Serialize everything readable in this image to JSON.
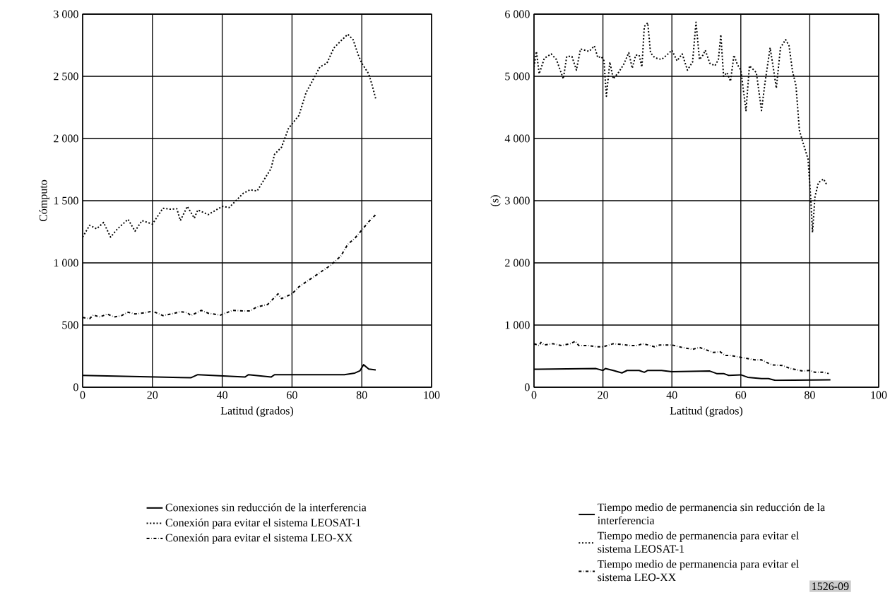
{
  "chart_data": [
    {
      "type": "line",
      "xlabel": "Latitud (grados)",
      "ylabel": "Cómputo",
      "xlim": [
        0,
        100
      ],
      "xticks": [
        0,
        20,
        40,
        60,
        80,
        100
      ],
      "ylim": [
        0,
        3000
      ],
      "yticks": [
        0,
        500,
        {
          "value": 1000,
          "label": "1 000"
        },
        {
          "value": 1500,
          "label": "1 500"
        },
        {
          "value": 2000,
          "label": "2 000"
        },
        {
          "value": 2500,
          "label": "2 500"
        },
        {
          "value": 3000,
          "label": "3 000"
        }
      ],
      "grid": true,
      "legend": "bottom",
      "marker": "none",
      "series": [
        {
          "name": "Conexiones sin reducción de la interferencia",
          "color": "#000000",
          "line_style": "solid",
          "x": [
            0,
            31,
            33,
            46.5,
            47.5,
            54,
            55,
            75,
            78,
            79.5,
            80.5,
            82,
            84
          ],
          "values": [
            95,
            76,
            101,
            82,
            101,
            82,
            101,
            101,
            114,
            133,
            181,
            146,
            139
          ]
        },
        {
          "name": "Conexión para evitar el sistema LEOSAT-1",
          "color": "#000000",
          "line_style": "dotted",
          "x": [
            0,
            2,
            4,
            6,
            8,
            10,
            13,
            15,
            17,
            20,
            23,
            25,
            27,
            28,
            30,
            32,
            33,
            36,
            40,
            42,
            46,
            48,
            50,
            54,
            55,
            57,
            59,
            62,
            64,
            66,
            68,
            70,
            72,
            74,
            76,
            77.5,
            79,
            80,
            82,
            83,
            84
          ],
          "values": [
            1207,
            1302,
            1274,
            1325,
            1207,
            1274,
            1350,
            1255,
            1340,
            1312,
            1439,
            1432,
            1435,
            1340,
            1454,
            1359,
            1426,
            1388,
            1454,
            1445,
            1559,
            1588,
            1578,
            1759,
            1873,
            1930,
            2082,
            2186,
            2367,
            2471,
            2576,
            2605,
            2728,
            2785,
            2838,
            2795,
            2671,
            2605,
            2519,
            2424,
            2319
          ]
        },
        {
          "name": "Conexión para evitar el sistema LEO-XX",
          "color": "#000000",
          "line_style": "dashdot",
          "x": [
            0,
            2,
            3,
            5,
            7,
            9,
            11,
            13,
            15,
            18,
            20,
            23,
            26,
            28,
            30,
            31,
            34,
            36,
            39.5,
            43,
            46,
            48,
            50,
            53,
            56,
            57,
            60,
            62,
            65,
            68,
            71,
            74,
            76,
            78,
            80,
            82,
            84
          ],
          "values": [
            561,
            551,
            580,
            565,
            589,
            565,
            574,
            603,
            589,
            599,
            612,
            576,
            593,
            608,
            599,
            576,
            618,
            595,
            580,
            618,
            614,
            614,
            646,
            665,
            751,
            713,
            751,
            808,
            865,
            922,
            979,
            1055,
            1150,
            1198,
            1264,
            1331,
            1388
          ]
        }
      ]
    },
    {
      "type": "line",
      "xlabel": "Latitud (grados)",
      "ylabel": "(s)",
      "xlim": [
        0,
        100
      ],
      "xticks": [
        0,
        20,
        40,
        60,
        80,
        100
      ],
      "ylim": [
        0,
        6000
      ],
      "yticks": [
        0,
        {
          "value": 1000,
          "label": "1 000"
        },
        {
          "value": 2000,
          "label": "2 000"
        },
        {
          "value": 3000,
          "label": "3 000"
        },
        {
          "value": 4000,
          "label": "4 000"
        },
        {
          "value": 5000,
          "label": "5 000"
        },
        {
          "value": 6000,
          "label": "6 000"
        }
      ],
      "grid": true,
      "legend": "bottom",
      "marker": "none",
      "annotations": [
        "1526-09"
      ],
      "series": [
        {
          "name": "Tiempo medio de permanencia sin reducción de la interferencia",
          "color": "#000000",
          "line_style": "solid",
          "x": [
            0,
            18,
            20,
            20.7,
            23,
            25.5,
            27,
            29,
            30.5,
            32,
            33,
            37,
            40,
            51,
            53,
            55,
            56.5,
            60,
            62,
            66,
            68,
            70,
            86
          ],
          "values": [
            290,
            300,
            270,
            300,
            270,
            230,
            270,
            270,
            270,
            240,
            270,
            270,
            250,
            260,
            220,
            220,
            190,
            200,
            160,
            140,
            140,
            110,
            120
          ]
        },
        {
          "name": "Tiempo medio de permanencia para evitar el sistema LEOSAT-1",
          "color": "#000000",
          "line_style": "dotted",
          "x": [
            0,
            0.7,
            1.5,
            3,
            5,
            6.5,
            8.5,
            9.5,
            11,
            12.3,
            13.5,
            16,
            17.5,
            18.5,
            19.5,
            20.3,
            21,
            22,
            23,
            24.5,
            26,
            27.5,
            28.5,
            29.5,
            30.5,
            31.3,
            32,
            33,
            33.8,
            35,
            37,
            38.5,
            40,
            41.5,
            43,
            44.5,
            46,
            47,
            48,
            49,
            49.7,
            51,
            52.5,
            53.5,
            54.2,
            55,
            56,
            57,
            58,
            59,
            60,
            61.5,
            62.5,
            64.5,
            66,
            67,
            68.5,
            69.5,
            70.3,
            71.5,
            73,
            74,
            75,
            76,
            77,
            78,
            79.5,
            80.3,
            80.8,
            81.5,
            82.5,
            84,
            85
          ],
          "values": [
            5150,
            5400,
            5040,
            5290,
            5360,
            5270,
            4960,
            5320,
            5320,
            5100,
            5440,
            5400,
            5490,
            5300,
            5320,
            5250,
            4680,
            5230,
            4960,
            5060,
            5190,
            5380,
            5130,
            5340,
            5340,
            5150,
            5800,
            5860,
            5380,
            5300,
            5270,
            5340,
            5420,
            5250,
            5360,
            5100,
            5230,
            5870,
            5270,
            5340,
            5420,
            5210,
            5170,
            5270,
            5670,
            5000,
            5060,
            4920,
            5340,
            5190,
            5100,
            4450,
            5170,
            5060,
            4450,
            4890,
            5460,
            5110,
            4810,
            5460,
            5590,
            5490,
            5080,
            4850,
            4130,
            3940,
            3670,
            3020,
            2490,
            3060,
            3290,
            3350,
            3250
          ]
        },
        {
          "name": "Tiempo medio de permanencia para evitar el sistema LEO-XX",
          "color": "#000000",
          "line_style": "dashdot",
          "x": [
            0,
            1.5,
            2,
            3,
            5.5,
            8,
            10.5,
            12,
            13,
            16,
            18,
            20,
            23,
            25,
            28,
            30,
            31.5,
            33,
            35,
            36.5,
            40,
            43,
            46,
            48,
            52,
            54,
            55.5,
            57,
            60,
            64,
            66,
            69,
            72,
            74.5,
            78,
            80,
            81.5,
            84,
            85.5
          ],
          "values": [
            700,
            670,
            720,
            680,
            700,
            670,
            700,
            740,
            670,
            670,
            650,
            650,
            700,
            690,
            670,
            670,
            700,
            680,
            650,
            680,
            680,
            640,
            610,
            640,
            560,
            570,
            510,
            510,
            480,
            440,
            440,
            360,
            350,
            300,
            260,
            270,
            240,
            240,
            220
          ]
        }
      ]
    }
  ]
}
